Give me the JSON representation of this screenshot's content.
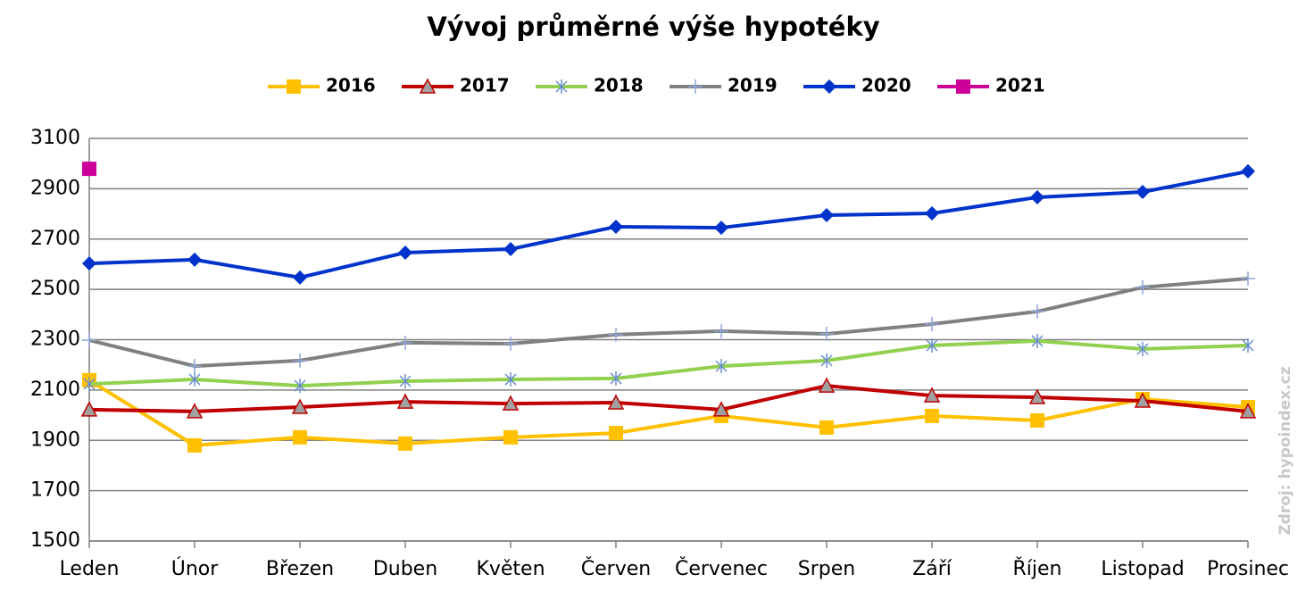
{
  "chart_data": {
    "type": "line",
    "title": "Vývoj průměrné výše hypotéky",
    "source": "Zdroj: hypoindex.cz",
    "categories": [
      "Leden",
      "Únor",
      "Březen",
      "Duben",
      "Květen",
      "Červen",
      "Červenec",
      "Srpen",
      "Září",
      "Říjen",
      "Listopad",
      "Prosinec"
    ],
    "ylim": [
      1500,
      3100
    ],
    "yticks": [
      1500,
      1700,
      1900,
      2100,
      2300,
      2500,
      2700,
      2900,
      3100
    ],
    "grid": true,
    "legend": "top",
    "series": [
      {
        "name": "2016",
        "color": "#ffc000",
        "marker": "square",
        "values": [
          2139,
          1880,
          1912,
          1887,
          1912,
          1929,
          1997,
          1951,
          1997,
          1979,
          2064,
          2032
        ]
      },
      {
        "name": "2017",
        "color": "#c00000",
        "marker": "triangle",
        "values": [
          2022,
          2015,
          2032,
          2053,
          2046,
          2050,
          2022,
          2117,
          2078,
          2071,
          2057,
          2015
        ]
      },
      {
        "name": "2018",
        "color": "#92d050",
        "marker": "star",
        "values": [
          2124,
          2142,
          2117,
          2135,
          2142,
          2146,
          2195,
          2217,
          2277,
          2295,
          2263,
          2277
        ]
      },
      {
        "name": "2019",
        "color": "#808080",
        "marker": "plus",
        "values": [
          2298,
          2195,
          2217,
          2288,
          2284,
          2320,
          2334,
          2323,
          2362,
          2412,
          2508,
          2543
        ]
      },
      {
        "name": "2020",
        "color": "#0033cc",
        "marker": "diamond",
        "values": [
          2603,
          2618,
          2547,
          2646,
          2660,
          2749,
          2745,
          2795,
          2802,
          2866,
          2887,
          2969
        ]
      },
      {
        "name": "2021",
        "color": "#cc0099",
        "marker": "square",
        "values": [
          2979,
          null,
          null,
          null,
          null,
          null,
          null,
          null,
          null,
          null,
          null,
          null
        ]
      }
    ]
  }
}
